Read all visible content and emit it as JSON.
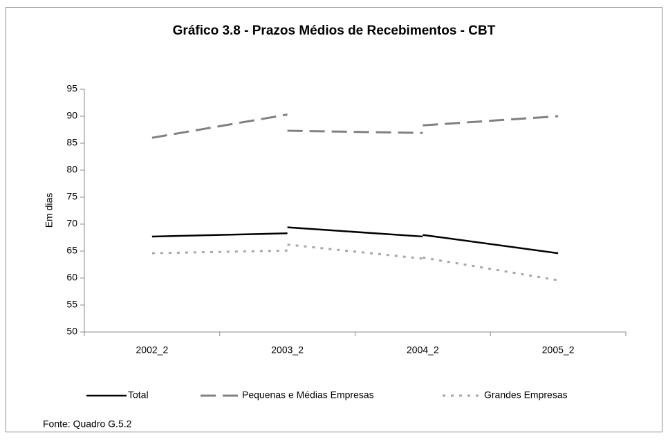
{
  "chart_data": {
    "type": "line",
    "title": "Gráfico 3.8 - Prazos Médios de Recebimentos - CBT",
    "y_label": "Em dias",
    "source": "Fonte: Quadro G.5.2",
    "categories": [
      "2002_2",
      "2003_2",
      "2004_2",
      "2005_2"
    ],
    "ylim": [
      50,
      95
    ],
    "yticks": [
      50,
      55,
      60,
      65,
      70,
      75,
      80,
      85,
      90,
      95
    ],
    "series": [
      {
        "name": "Total",
        "color": "#000000",
        "dash": "solid",
        "values": [
          [
            67.7,
            68.3
          ],
          [
            69.4,
            67.7
          ],
          [
            68.0,
            64.6
          ]
        ]
      },
      {
        "name": "Pequenas e Médias Empresas",
        "color": "#808080",
        "dash": "long",
        "values": [
          [
            86.0,
            90.3
          ],
          [
            87.3,
            86.9
          ],
          [
            88.3,
            90.0
          ]
        ]
      },
      {
        "name": "Grandes Empresas",
        "color": "#a6a6a6",
        "dash": "dot",
        "values": [
          [
            64.6,
            65.1
          ],
          [
            66.2,
            63.6
          ],
          [
            63.8,
            59.6
          ]
        ]
      }
    ]
  }
}
